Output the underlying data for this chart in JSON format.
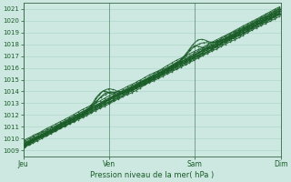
{
  "xlabel": "Pression niveau de la mer( hPa )",
  "ylim": [
    1008.5,
    1021.5
  ],
  "yticks": [
    1009,
    1010,
    1011,
    1012,
    1013,
    1014,
    1015,
    1016,
    1017,
    1018,
    1019,
    1020,
    1021
  ],
  "xtick_labels": [
    "Jeu",
    "Ven",
    "Sam",
    "Dim"
  ],
  "xtick_positions": [
    0,
    96,
    192,
    288
  ],
  "x_total_points": 288,
  "bg_color": "#cce8e0",
  "grid_color": "#aad4c8",
  "line_color": "#1a5c28",
  "spine_color": "#336644",
  "tick_label_color": "#1a5c28",
  "xlabel_color": "#1a5c28",
  "line_width": 0.7,
  "figsize": [
    3.2,
    2.0
  ],
  "dpi": 100
}
